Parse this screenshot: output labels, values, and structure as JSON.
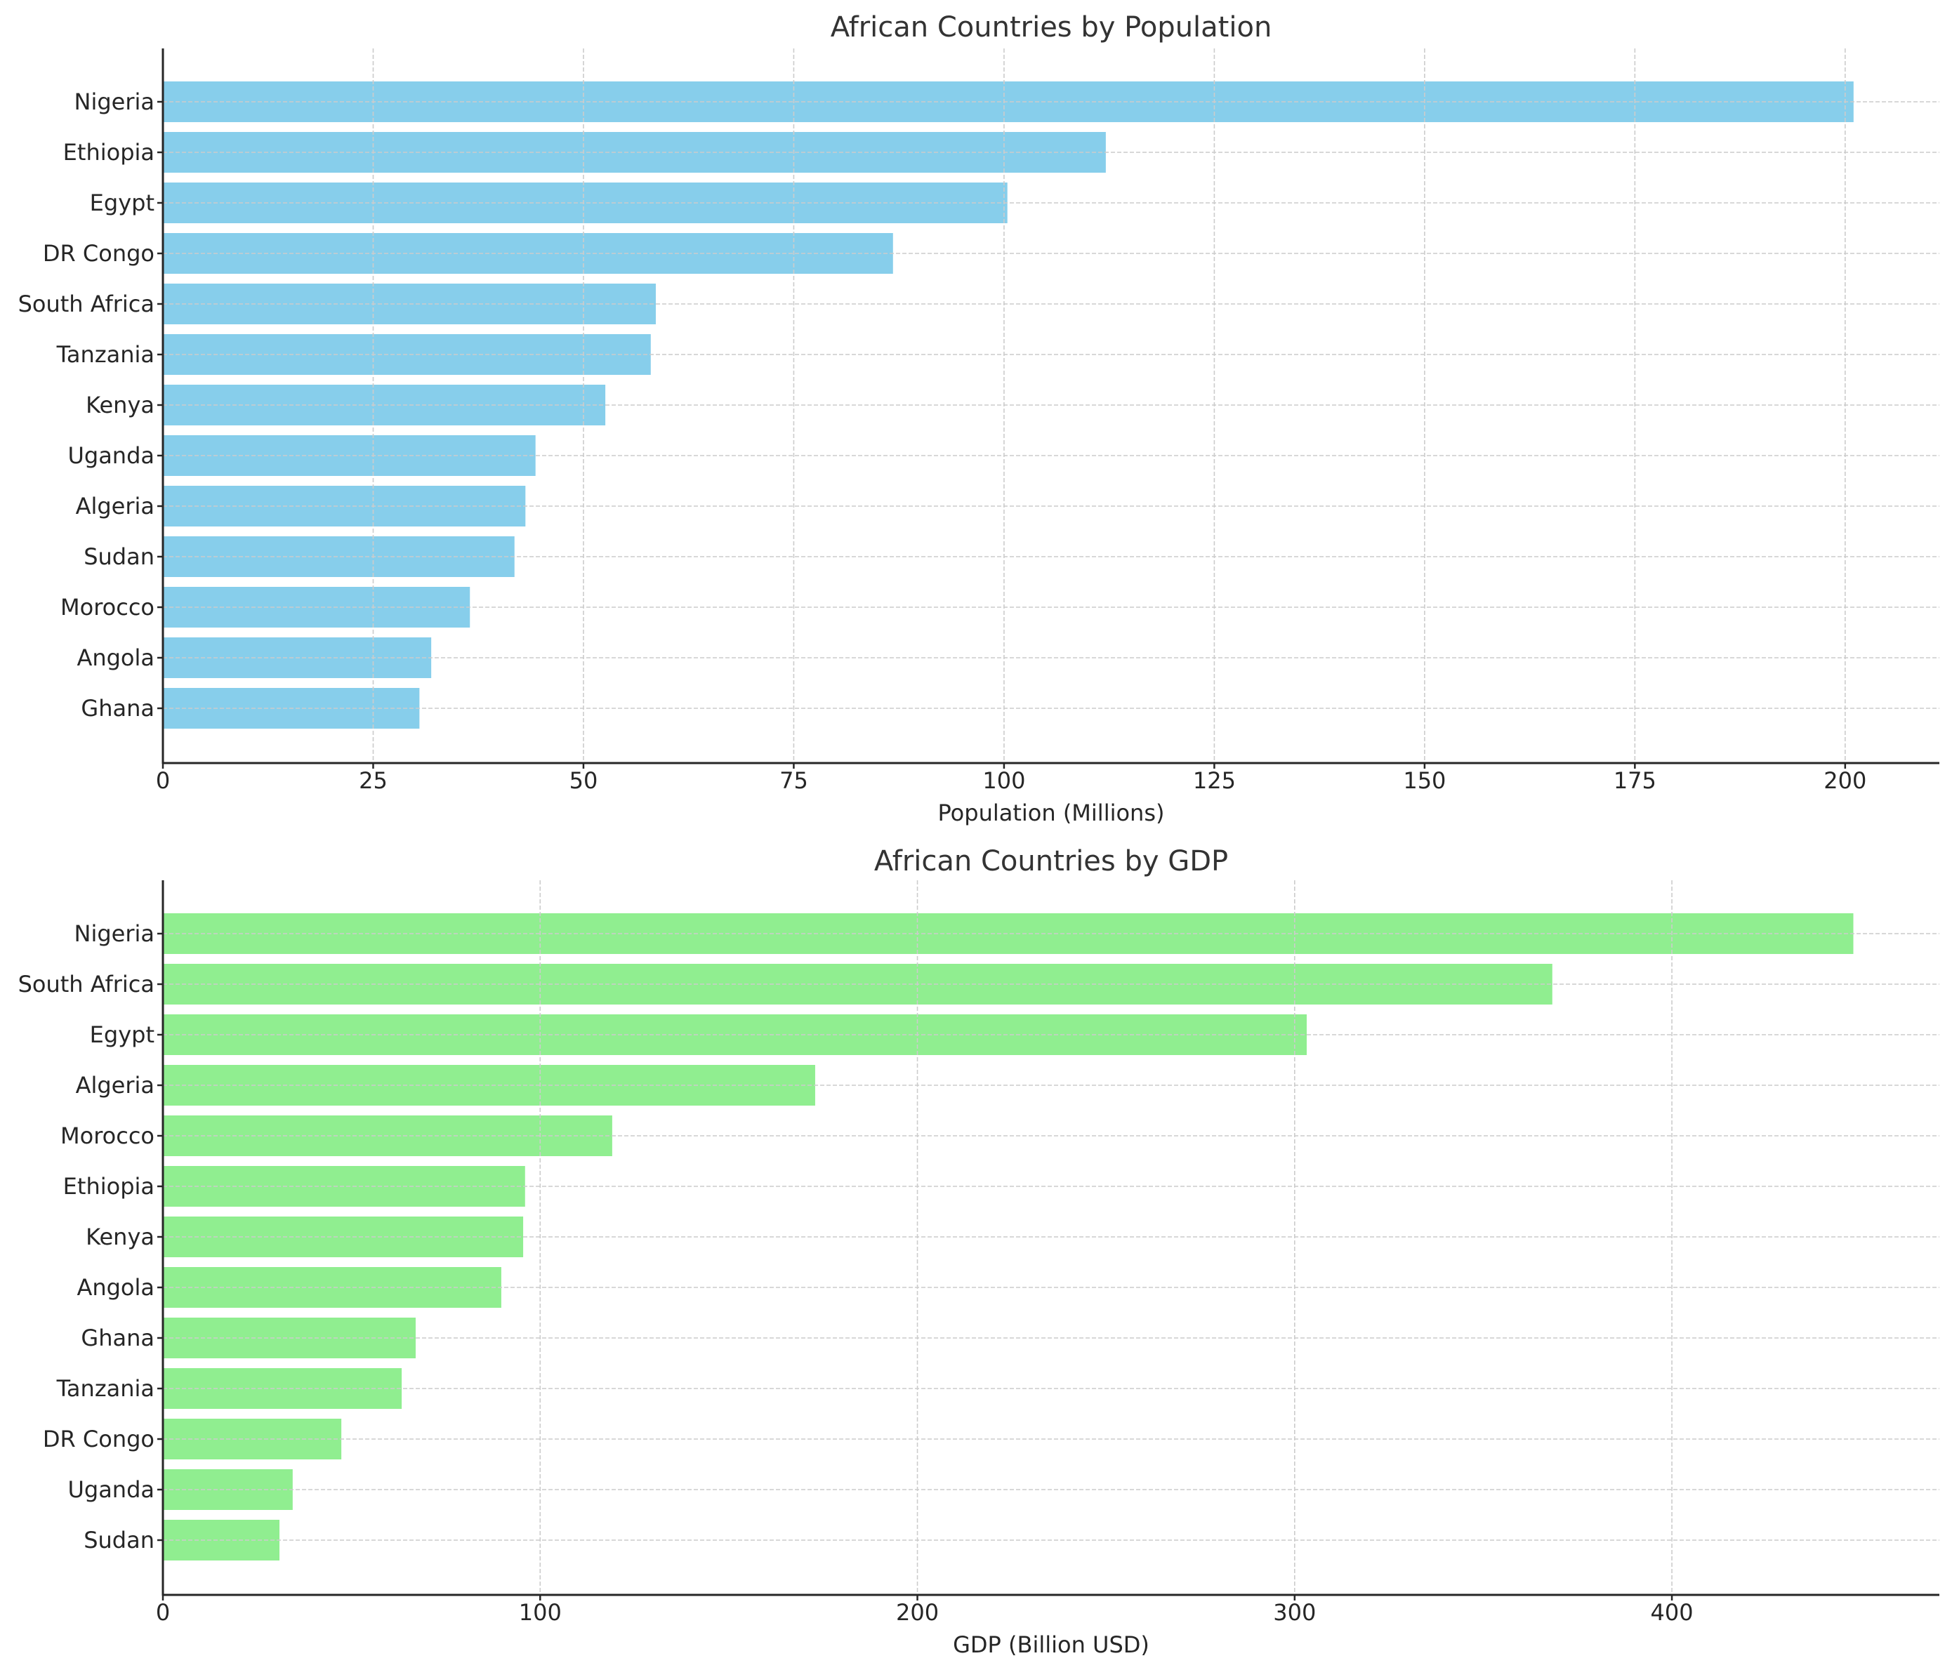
{
  "chart_data": [
    {
      "type": "bar",
      "orientation": "horizontal",
      "title": "African Countries by Population",
      "xlabel": "Population (Millions)",
      "ylabel": "",
      "categories": [
        "Nigeria",
        "Ethiopia",
        "Egypt",
        "DR Congo",
        "South Africa",
        "Tanzania",
        "Kenya",
        "Uganda",
        "Algeria",
        "Sudan",
        "Morocco",
        "Angola",
        "Ghana"
      ],
      "values": [
        201.0,
        112.1,
        100.4,
        86.8,
        58.6,
        58.0,
        52.6,
        44.3,
        43.1,
        41.8,
        36.5,
        31.9,
        30.5
      ],
      "xticks": [
        "0",
        "25",
        "50",
        "75",
        "100",
        "125",
        "150",
        "175",
        "200"
      ],
      "xtick_values": [
        0,
        25,
        50,
        75,
        100,
        125,
        150,
        175,
        200
      ],
      "xlim": [
        0,
        211.2
      ],
      "grid": true,
      "color": "#87CEEB"
    },
    {
      "type": "bar",
      "orientation": "horizontal",
      "title": "African Countries by GDP",
      "xlabel": "GDP (Billion USD)",
      "ylabel": "",
      "categories": [
        "Nigeria",
        "South Africa",
        "Egypt",
        "Algeria",
        "Morocco",
        "Ethiopia",
        "Kenya",
        "Angola",
        "Ghana",
        "Tanzania",
        "DR Congo",
        "Uganda",
        "Sudan"
      ],
      "values": [
        448.1,
        368.3,
        303.2,
        172.9,
        119.1,
        96.0,
        95.5,
        89.7,
        67.0,
        63.3,
        47.3,
        34.4,
        30.9
      ],
      "xticks": [
        "0",
        "100",
        "200",
        "300",
        "400"
      ],
      "xtick_values": [
        0,
        100,
        200,
        300,
        400
      ],
      "xlim": [
        0,
        470.9
      ],
      "grid": true,
      "color": "#90EE90"
    }
  ]
}
